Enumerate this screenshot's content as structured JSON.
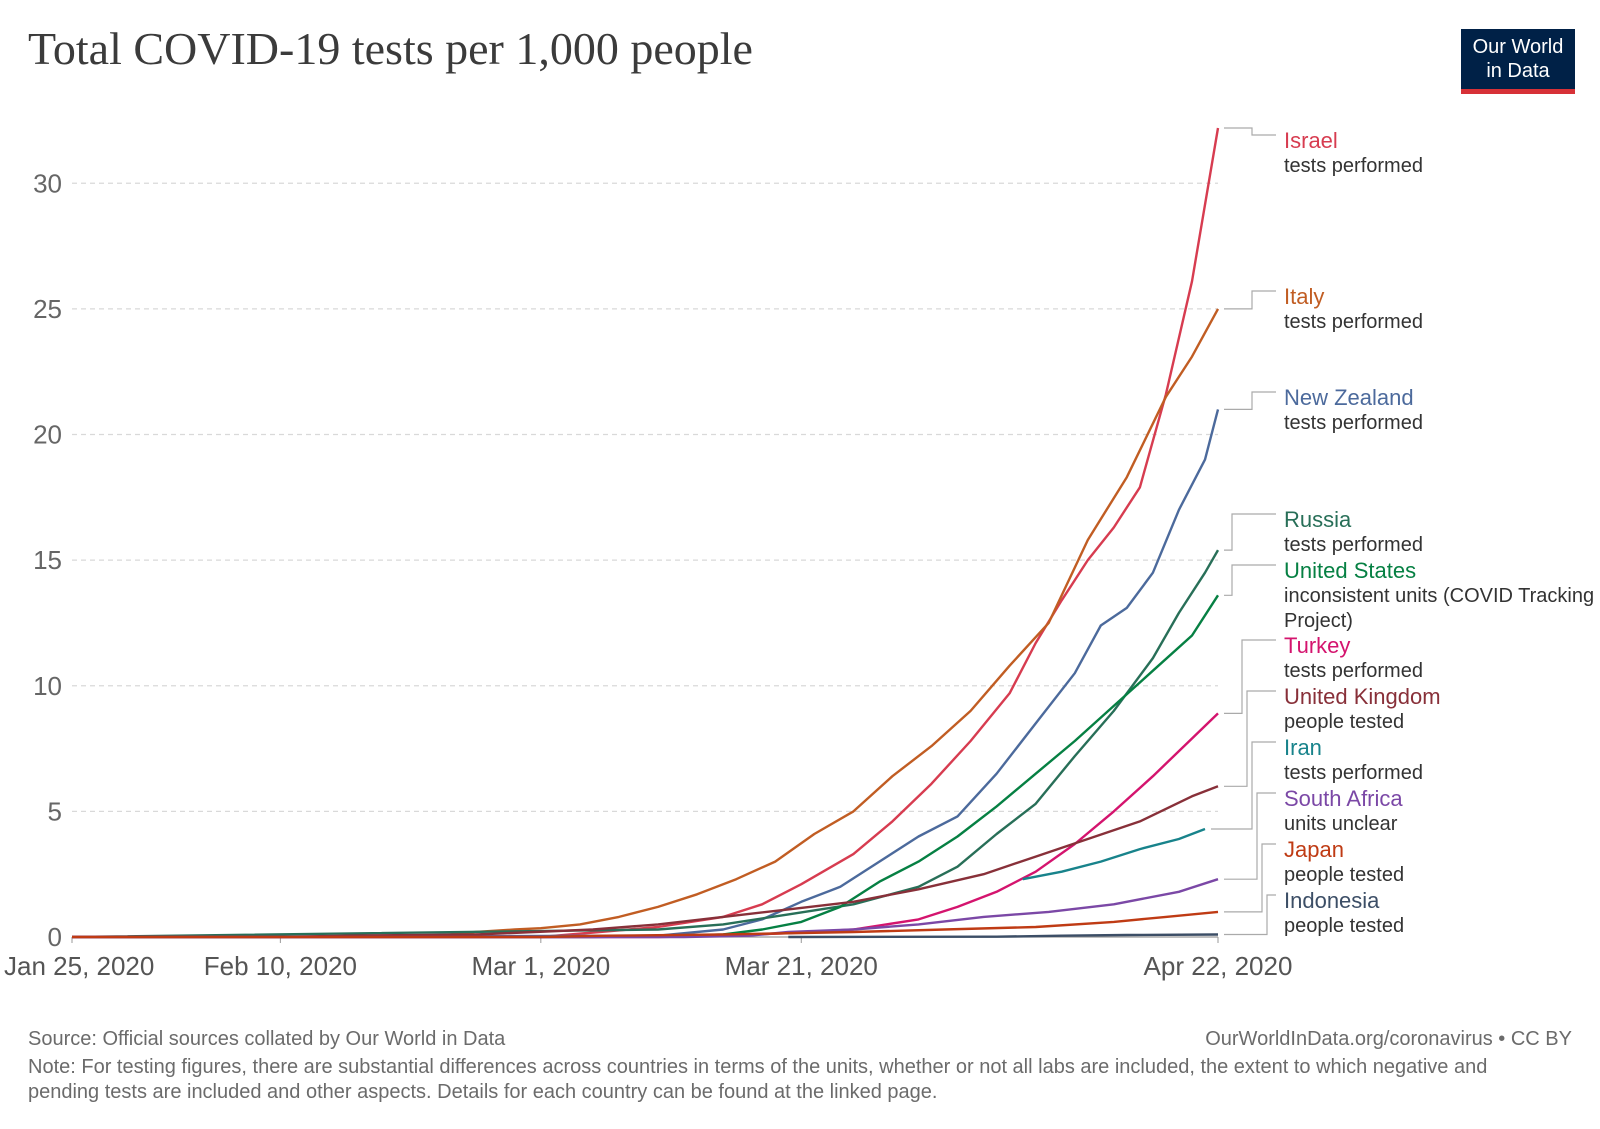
{
  "title": "Total COVID-19 tests per 1,000 people",
  "logo": {
    "line1": "Our World",
    "line2": "in Data",
    "bg": "#002147",
    "accent": "#d73137"
  },
  "footer": {
    "source": "Source: Official sources collated by Our World in Data",
    "url": "OurWorldInData.org/coronavirus • CC BY",
    "note": "Note: For testing figures, there are substantial differences across countries in terms of the units, whether or not all labs are included, the extent to which negative and pending tests are included and other aspects. Details for each country can be found at the linked page."
  },
  "chart_data": {
    "type": "line",
    "title": "Total COVID-19 tests per 1,000 people",
    "xlabel": "",
    "ylabel": "",
    "x_ticks": [
      "Jan 25, 2020",
      "Feb 10, 2020",
      "Mar 1, 2020",
      "Mar 21, 2020",
      "Apr 22, 2020"
    ],
    "y_ticks": [
      0,
      5,
      10,
      15,
      20,
      25,
      30
    ],
    "xlim": [
      "2020-01-25",
      "2020-04-22"
    ],
    "ylim": [
      0,
      32.2
    ],
    "grid": "horizontal dashed",
    "legend": "right, labels at line ends",
    "series": [
      {
        "name": "Israel",
        "unit": "tests performed",
        "color": "#d73c50",
        "points": [
          [
            "2020-01-25",
            0
          ],
          [
            "2020-03-01",
            0
          ],
          [
            "2020-03-10",
            0.4
          ],
          [
            "2020-03-15",
            0.8
          ],
          [
            "2020-03-18",
            1.3
          ],
          [
            "2020-03-21",
            2.1
          ],
          [
            "2020-03-25",
            3.3
          ],
          [
            "2020-03-28",
            4.6
          ],
          [
            "2020-03-31",
            6.1
          ],
          [
            "2020-04-03",
            7.8
          ],
          [
            "2020-04-06",
            9.7
          ],
          [
            "2020-04-08",
            11.7
          ],
          [
            "2020-04-10",
            13.4
          ],
          [
            "2020-04-12",
            15.0
          ],
          [
            "2020-04-14",
            16.3
          ],
          [
            "2020-04-16",
            17.9
          ],
          [
            "2020-04-18",
            21.6
          ],
          [
            "2020-04-20",
            26.1
          ],
          [
            "2020-04-22",
            32.2
          ]
        ]
      },
      {
        "name": "Italy",
        "unit": "tests performed",
        "color": "#c15d23",
        "points": [
          [
            "2020-01-25",
            0
          ],
          [
            "2020-02-10",
            0
          ],
          [
            "2020-02-22",
            0.05
          ],
          [
            "2020-02-25",
            0.2
          ],
          [
            "2020-02-28",
            0.3
          ],
          [
            "2020-03-01",
            0.35
          ],
          [
            "2020-03-04",
            0.5
          ],
          [
            "2020-03-07",
            0.8
          ],
          [
            "2020-03-10",
            1.2
          ],
          [
            "2020-03-13",
            1.7
          ],
          [
            "2020-03-16",
            2.3
          ],
          [
            "2020-03-19",
            3.0
          ],
          [
            "2020-03-22",
            4.1
          ],
          [
            "2020-03-25",
            5.0
          ],
          [
            "2020-03-28",
            6.4
          ],
          [
            "2020-03-31",
            7.6
          ],
          [
            "2020-04-03",
            9.0
          ],
          [
            "2020-04-06",
            10.8
          ],
          [
            "2020-04-09",
            12.5
          ],
          [
            "2020-04-12",
            15.8
          ],
          [
            "2020-04-15",
            18.3
          ],
          [
            "2020-04-18",
            21.5
          ],
          [
            "2020-04-20",
            23.1
          ],
          [
            "2020-04-22",
            25.0
          ]
        ]
      },
      {
        "name": "New Zealand",
        "unit": "tests performed",
        "color": "#4c6a9c",
        "points": [
          [
            "2020-01-25",
            0
          ],
          [
            "2020-03-10",
            0.05
          ],
          [
            "2020-03-15",
            0.3
          ],
          [
            "2020-03-18",
            0.7
          ],
          [
            "2020-03-21",
            1.4
          ],
          [
            "2020-03-24",
            2.0
          ],
          [
            "2020-03-27",
            3.0
          ],
          [
            "2020-03-30",
            4.0
          ],
          [
            "2020-04-02",
            4.8
          ],
          [
            "2020-04-05",
            6.5
          ],
          [
            "2020-04-08",
            8.5
          ],
          [
            "2020-04-11",
            10.5
          ],
          [
            "2020-04-13",
            12.4
          ],
          [
            "2020-04-15",
            13.1
          ],
          [
            "2020-04-17",
            14.5
          ],
          [
            "2020-04-19",
            17.0
          ],
          [
            "2020-04-21",
            19.0
          ],
          [
            "2020-04-22",
            21.0
          ]
        ]
      },
      {
        "name": "Russia",
        "unit": "tests performed",
        "color": "#286f58",
        "points": [
          [
            "2020-01-25",
            0
          ],
          [
            "2020-03-10",
            0.3
          ],
          [
            "2020-03-15",
            0.5
          ],
          [
            "2020-03-20",
            0.9
          ],
          [
            "2020-03-25",
            1.3
          ],
          [
            "2020-03-30",
            2.0
          ],
          [
            "2020-04-02",
            2.8
          ],
          [
            "2020-04-05",
            4.1
          ],
          [
            "2020-04-08",
            5.3
          ],
          [
            "2020-04-11",
            7.2
          ],
          [
            "2020-04-14",
            9.0
          ],
          [
            "2020-04-17",
            11.1
          ],
          [
            "2020-04-19",
            12.9
          ],
          [
            "2020-04-21",
            14.5
          ],
          [
            "2020-04-22",
            15.4
          ]
        ]
      },
      {
        "name": "United States",
        "unit": "inconsistent units (COVID Tracking Project)",
        "color": "#068043",
        "points": [
          [
            "2020-01-25",
            0
          ],
          [
            "2020-03-05",
            0
          ],
          [
            "2020-03-10",
            0.03
          ],
          [
            "2020-03-15",
            0.1
          ],
          [
            "2020-03-18",
            0.3
          ],
          [
            "2020-03-21",
            0.6
          ],
          [
            "2020-03-24",
            1.2
          ],
          [
            "2020-03-27",
            2.2
          ],
          [
            "2020-03-30",
            3.0
          ],
          [
            "2020-04-02",
            4.0
          ],
          [
            "2020-04-05",
            5.2
          ],
          [
            "2020-04-08",
            6.5
          ],
          [
            "2020-04-11",
            7.8
          ],
          [
            "2020-04-14",
            9.2
          ],
          [
            "2020-04-17",
            10.6
          ],
          [
            "2020-04-20",
            12.0
          ],
          [
            "2020-04-22",
            13.6
          ]
        ]
      },
      {
        "name": "Turkey",
        "unit": "tests performed",
        "color": "#d4146e",
        "points": [
          [
            "2020-01-25",
            0
          ],
          [
            "2020-03-10",
            0
          ],
          [
            "2020-03-15",
            0.05
          ],
          [
            "2020-03-20",
            0.15
          ],
          [
            "2020-03-25",
            0.3
          ],
          [
            "2020-03-30",
            0.7
          ],
          [
            "2020-04-02",
            1.2
          ],
          [
            "2020-04-05",
            1.8
          ],
          [
            "2020-04-08",
            2.6
          ],
          [
            "2020-04-11",
            3.7
          ],
          [
            "2020-04-14",
            5.0
          ],
          [
            "2020-04-17",
            6.4
          ],
          [
            "2020-04-20",
            7.9
          ],
          [
            "2020-04-22",
            8.9
          ]
        ]
      },
      {
        "name": "United Kingdom",
        "unit": "people tested",
        "color": "#883039",
        "points": [
          [
            "2020-01-25",
            0
          ],
          [
            "2020-02-10",
            0
          ],
          [
            "2020-02-15",
            0.05
          ],
          [
            "2020-02-25",
            0.1
          ],
          [
            "2020-03-05",
            0.3
          ],
          [
            "2020-03-10",
            0.5
          ],
          [
            "2020-03-15",
            0.8
          ],
          [
            "2020-03-20",
            1.1
          ],
          [
            "2020-03-25",
            1.4
          ],
          [
            "2020-03-30",
            1.9
          ],
          [
            "2020-04-04",
            2.5
          ],
          [
            "2020-04-08",
            3.2
          ],
          [
            "2020-04-12",
            3.9
          ],
          [
            "2020-04-16",
            4.6
          ],
          [
            "2020-04-20",
            5.6
          ],
          [
            "2020-04-22",
            6.0
          ]
        ]
      },
      {
        "name": "Iran",
        "unit": "tests performed",
        "color": "#18838b",
        "points": [
          [
            "2020-04-07",
            2.3
          ],
          [
            "2020-04-10",
            2.6
          ],
          [
            "2020-04-13",
            3.0
          ],
          [
            "2020-04-16",
            3.5
          ],
          [
            "2020-04-19",
            3.9
          ],
          [
            "2020-04-21",
            4.3
          ]
        ]
      },
      {
        "name": "South Africa",
        "unit": "units unclear",
        "color": "#7b48a6",
        "points": [
          [
            "2020-01-25",
            0
          ],
          [
            "2020-03-12",
            0
          ],
          [
            "2020-03-17",
            0.05
          ],
          [
            "2020-03-20",
            0.2
          ],
          [
            "2020-03-25",
            0.3
          ],
          [
            "2020-03-30",
            0.5
          ],
          [
            "2020-04-04",
            0.8
          ],
          [
            "2020-04-09",
            1.0
          ],
          [
            "2020-04-14",
            1.3
          ],
          [
            "2020-04-19",
            1.8
          ],
          [
            "2020-04-22",
            2.3
          ]
        ]
      },
      {
        "name": "Japan",
        "unit": "people tested",
        "color": "#bf3b14",
        "points": [
          [
            "2020-01-25",
            0
          ],
          [
            "2020-03-01",
            0
          ],
          [
            "2020-03-06",
            0.05
          ],
          [
            "2020-03-15",
            0.1
          ],
          [
            "2020-03-25",
            0.2
          ],
          [
            "2020-04-01",
            0.3
          ],
          [
            "2020-04-08",
            0.4
          ],
          [
            "2020-04-14",
            0.6
          ],
          [
            "2020-04-18",
            0.8
          ],
          [
            "2020-04-22",
            1.0
          ]
        ]
      },
      {
        "name": "Indonesia",
        "unit": "people tested",
        "color": "#3c4e66",
        "points": [
          [
            "2020-03-20",
            0
          ],
          [
            "2020-04-05",
            0.01
          ],
          [
            "2020-04-10",
            0.05
          ],
          [
            "2020-04-15",
            0.08
          ],
          [
            "2020-04-22",
            0.1
          ]
        ]
      }
    ]
  }
}
